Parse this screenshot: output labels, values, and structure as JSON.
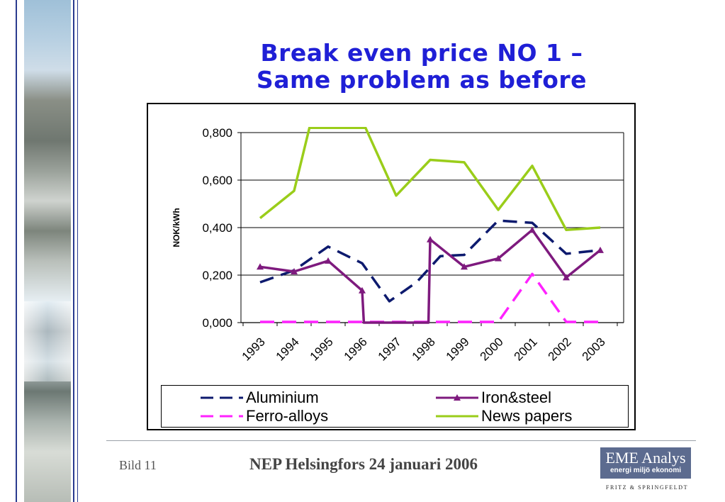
{
  "slide": {
    "title_line1": "Break even price NO 1 –",
    "title_line2": "Same problem as before",
    "page_label": "Bild 11",
    "footer_text": "NEP Helsingfors 24 januari 2006",
    "logo_main": "EME Analys",
    "logo_sub": "energi miljö ekonomi",
    "logo_company": "FRITZ & SPRINGFELDT"
  },
  "chart_data": {
    "type": "line",
    "title": "",
    "xlabel": "",
    "ylabel": "NOK/kWh",
    "categories": [
      "1993",
      "1994",
      "1995",
      "1996",
      "1997",
      "1998",
      "1999",
      "2000",
      "2001",
      "2002",
      "2003"
    ],
    "ylim": [
      0,
      0.8
    ],
    "yticks": [
      "0,000",
      "0,200",
      "0,400",
      "0,600",
      "0,800"
    ],
    "ytick_values": [
      0,
      0.2,
      0.4,
      0.6,
      0.8
    ],
    "grid": true,
    "legend_position": "bottom",
    "series": [
      {
        "name": "Aluminium",
        "style": "dashed",
        "color": "#0d1a6e",
        "marker": "none",
        "x": [
          1993,
          1994,
          1995,
          1996,
          1996.8,
          1997.6,
          1998.3,
          1999,
          2000,
          2001,
          2002,
          2003
        ],
        "values": [
          0.17,
          0.22,
          0.32,
          0.25,
          0.09,
          0.17,
          0.28,
          0.285,
          0.43,
          0.42,
          0.29,
          0.305
        ]
      },
      {
        "name": "Iron&steel",
        "style": "solid",
        "color": "#7e1a7e",
        "marker": "triangle",
        "x": [
          1993,
          1994,
          1995,
          1996,
          1996.05,
          1997.95,
          1998,
          1999,
          2000,
          2001,
          2002,
          2003
        ],
        "values": [
          0.235,
          0.215,
          0.26,
          0.135,
          0.0,
          0.0,
          0.35,
          0.235,
          0.27,
          0.39,
          0.19,
          0.305
        ],
        "marker_points": [
          0,
          1,
          2,
          3,
          6,
          7,
          8,
          9,
          10,
          11
        ]
      },
      {
        "name": "Ferro-alloys",
        "style": "dashed",
        "color": "#ff22ff",
        "marker": "none",
        "x": [
          1993,
          1994,
          1995,
          1996,
          1997,
          1998,
          1999,
          2000,
          2001,
          2002,
          2003
        ],
        "values": [
          0.003,
          0.003,
          0.003,
          0.003,
          0.003,
          0.003,
          0.003,
          0.003,
          0.205,
          0.003,
          0.003
        ]
      },
      {
        "name": "News papers",
        "style": "solid",
        "color": "#9acd1a",
        "marker": "none",
        "x": [
          1993,
          1994,
          1994.45,
          1996.1,
          1997,
          1998,
          1999,
          2000,
          2001,
          2002,
          2003
        ],
        "values": [
          0.44,
          0.555,
          0.82,
          0.82,
          0.535,
          0.685,
          0.675,
          0.475,
          0.66,
          0.39,
          0.4
        ]
      }
    ]
  }
}
